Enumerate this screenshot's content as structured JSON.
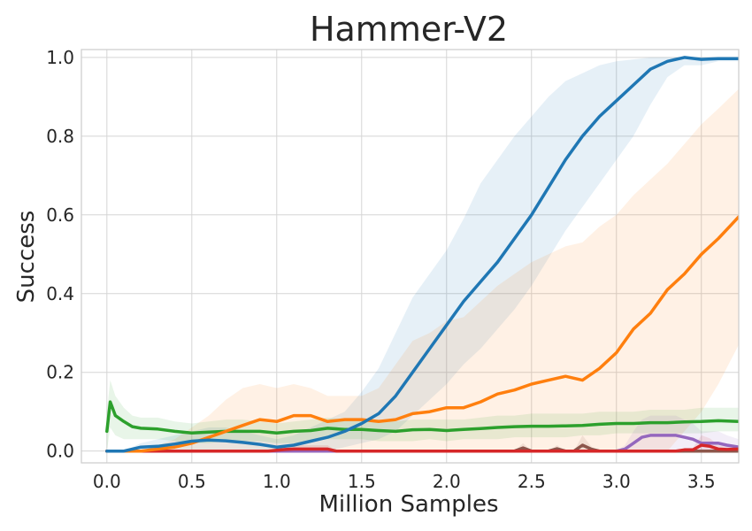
{
  "chart_data": {
    "type": "line",
    "title": "Hammer-V2",
    "xlabel": "Million Samples",
    "ylabel": "Success",
    "xlim": [
      -0.15,
      3.72
    ],
    "ylim": [
      -0.03,
      1.02
    ],
    "x_ticks": [
      0.0,
      0.5,
      1.0,
      1.5,
      2.0,
      2.5,
      3.0,
      3.5
    ],
    "x_tick_labels": [
      "0.0",
      "0.5",
      "1.0",
      "1.5",
      "2.0",
      "2.5",
      "3.0",
      "3.5"
    ],
    "y_ticks": [
      0.0,
      0.2,
      0.4,
      0.6,
      0.8,
      1.0
    ],
    "y_tick_labels": [
      "0.0",
      "0.2",
      "0.4",
      "0.6",
      "0.8",
      "1.0"
    ],
    "grid": true,
    "legend": "none",
    "series": [
      {
        "color": "#1f77b4",
        "x": [
          0.0,
          0.1,
          0.2,
          0.3,
          0.4,
          0.5,
          0.6,
          0.7,
          0.8,
          0.9,
          1.0,
          1.1,
          1.2,
          1.3,
          1.4,
          1.5,
          1.6,
          1.7,
          1.8,
          1.9,
          2.0,
          2.1,
          2.2,
          2.3,
          2.4,
          2.5,
          2.6,
          2.7,
          2.8,
          2.9,
          3.0,
          3.1,
          3.2,
          3.3,
          3.4,
          3.5,
          3.6,
          3.72
        ],
        "y": [
          0.0,
          0.0,
          0.01,
          0.012,
          0.018,
          0.025,
          0.028,
          0.026,
          0.022,
          0.017,
          0.01,
          0.015,
          0.025,
          0.035,
          0.05,
          0.07,
          0.095,
          0.14,
          0.2,
          0.26,
          0.32,
          0.38,
          0.43,
          0.48,
          0.54,
          0.6,
          0.67,
          0.74,
          0.8,
          0.85,
          0.89,
          0.93,
          0.97,
          0.99,
          1.0,
          0.995,
          0.997,
          0.997
        ],
        "lower": [
          0.0,
          0.0,
          0.0,
          0.0,
          0.0,
          0.0,
          0.0,
          0.0,
          0.0,
          0.0,
          0.0,
          0.0,
          0.0,
          0.0,
          0.01,
          0.02,
          0.03,
          0.05,
          0.09,
          0.13,
          0.17,
          0.22,
          0.26,
          0.31,
          0.36,
          0.42,
          0.49,
          0.56,
          0.62,
          0.68,
          0.74,
          0.8,
          0.88,
          0.95,
          0.98,
          0.98,
          0.99,
          0.99
        ],
        "upper": [
          0.0,
          0.0,
          0.02,
          0.03,
          0.04,
          0.05,
          0.06,
          0.06,
          0.05,
          0.04,
          0.03,
          0.04,
          0.06,
          0.08,
          0.1,
          0.15,
          0.21,
          0.3,
          0.39,
          0.45,
          0.51,
          0.59,
          0.68,
          0.74,
          0.8,
          0.85,
          0.9,
          0.94,
          0.96,
          0.98,
          0.99,
          0.995,
          1.0,
          1.0,
          1.0,
          1.0,
          1.0,
          1.0
        ]
      },
      {
        "color": "#ff7f0e",
        "x": [
          0.0,
          0.1,
          0.2,
          0.3,
          0.4,
          0.5,
          0.6,
          0.7,
          0.8,
          0.9,
          1.0,
          1.1,
          1.2,
          1.3,
          1.4,
          1.5,
          1.6,
          1.7,
          1.8,
          1.9,
          2.0,
          2.1,
          2.2,
          2.3,
          2.4,
          2.5,
          2.6,
          2.7,
          2.8,
          2.9,
          3.0,
          3.1,
          3.2,
          3.3,
          3.4,
          3.5,
          3.6,
          3.72
        ],
        "y": [
          0.0,
          0.0,
          0.0,
          0.005,
          0.01,
          0.02,
          0.035,
          0.05,
          0.065,
          0.08,
          0.075,
          0.09,
          0.09,
          0.075,
          0.08,
          0.08,
          0.075,
          0.08,
          0.095,
          0.1,
          0.11,
          0.11,
          0.125,
          0.145,
          0.155,
          0.17,
          0.18,
          0.19,
          0.18,
          0.21,
          0.25,
          0.31,
          0.35,
          0.41,
          0.45,
          0.5,
          0.54,
          0.595
        ],
        "lower": [
          0.0,
          0.0,
          0.0,
          0.0,
          0.0,
          0.0,
          0.0,
          0.0,
          0.0,
          0.0,
          0.0,
          0.0,
          0.0,
          0.0,
          0.0,
          0.0,
          0.0,
          0.0,
          0.0,
          0.0,
          0.0,
          0.0,
          0.0,
          0.0,
          0.0,
          0.0,
          0.0,
          0.0,
          0.0,
          0.0,
          0.0,
          0.0,
          0.0,
          0.0,
          0.05,
          0.1,
          0.17,
          0.27
        ],
        "upper": [
          0.0,
          0.0,
          0.0,
          0.015,
          0.03,
          0.06,
          0.09,
          0.13,
          0.16,
          0.17,
          0.16,
          0.17,
          0.16,
          0.14,
          0.14,
          0.14,
          0.16,
          0.22,
          0.28,
          0.3,
          0.33,
          0.34,
          0.38,
          0.42,
          0.45,
          0.48,
          0.5,
          0.52,
          0.53,
          0.57,
          0.6,
          0.65,
          0.69,
          0.73,
          0.78,
          0.83,
          0.87,
          0.92
        ]
      },
      {
        "color": "#2ca02c",
        "x": [
          0.0,
          0.02,
          0.05,
          0.1,
          0.15,
          0.2,
          0.3,
          0.4,
          0.5,
          0.6,
          0.7,
          0.8,
          0.9,
          1.0,
          1.1,
          1.2,
          1.3,
          1.4,
          1.5,
          1.6,
          1.7,
          1.8,
          1.9,
          2.0,
          2.1,
          2.2,
          2.3,
          2.4,
          2.5,
          2.6,
          2.7,
          2.8,
          2.9,
          3.0,
          3.1,
          3.2,
          3.3,
          3.4,
          3.5,
          3.6,
          3.72
        ],
        "y": [
          0.05,
          0.125,
          0.09,
          0.075,
          0.062,
          0.058,
          0.056,
          0.05,
          0.046,
          0.048,
          0.05,
          0.05,
          0.05,
          0.046,
          0.05,
          0.052,
          0.058,
          0.055,
          0.055,
          0.052,
          0.05,
          0.054,
          0.055,
          0.052,
          0.055,
          0.057,
          0.06,
          0.062,
          0.063,
          0.063,
          0.064,
          0.065,
          0.068,
          0.07,
          0.07,
          0.072,
          0.072,
          0.074,
          0.075,
          0.077,
          0.075
        ],
        "lower": [
          0.0,
          0.06,
          0.04,
          0.03,
          0.03,
          0.03,
          0.03,
          0.025,
          0.02,
          0.02,
          0.025,
          0.025,
          0.025,
          0.02,
          0.02,
          0.025,
          0.03,
          0.03,
          0.03,
          0.025,
          0.025,
          0.025,
          0.03,
          0.025,
          0.03,
          0.03,
          0.03,
          0.035,
          0.035,
          0.035,
          0.035,
          0.04,
          0.04,
          0.045,
          0.045,
          0.045,
          0.045,
          0.045,
          0.045,
          0.05,
          0.05
        ],
        "upper": [
          0.1,
          0.18,
          0.14,
          0.11,
          0.09,
          0.085,
          0.085,
          0.075,
          0.07,
          0.075,
          0.08,
          0.08,
          0.075,
          0.07,
          0.075,
          0.08,
          0.085,
          0.08,
          0.08,
          0.08,
          0.075,
          0.08,
          0.08,
          0.08,
          0.08,
          0.085,
          0.09,
          0.09,
          0.095,
          0.095,
          0.095,
          0.095,
          0.1,
          0.1,
          0.1,
          0.105,
          0.105,
          0.105,
          0.11,
          0.11,
          0.11
        ]
      },
      {
        "color": "#d62728",
        "x": [
          0.0,
          0.9,
          0.95,
          1.0,
          1.05,
          1.1,
          1.2,
          1.3,
          1.35,
          3.35,
          3.4,
          3.45,
          3.5,
          3.55,
          3.6,
          3.65,
          3.72
        ],
        "y": [
          0.0,
          0.0,
          0.0,
          0.002,
          0.004,
          0.005,
          0.005,
          0.005,
          0.0,
          0.0,
          0.003,
          0.003,
          0.015,
          0.012,
          0.005,
          0.004,
          0.005
        ],
        "lower": [
          0.0,
          0.0,
          0.0,
          0.0,
          0.0,
          0.0,
          0.0,
          0.0,
          0.0,
          0.0,
          0.0,
          0.0,
          0.0,
          0.0,
          0.0,
          0.0,
          0.0
        ],
        "upper": [
          0.0,
          0.0,
          0.0,
          0.006,
          0.012,
          0.015,
          0.015,
          0.015,
          0.0,
          0.0,
          0.008,
          0.008,
          0.04,
          0.032,
          0.015,
          0.012,
          0.015
        ]
      },
      {
        "color": "#9467bd",
        "x": [
          0.0,
          2.9,
          3.0,
          3.05,
          3.1,
          3.15,
          3.2,
          3.25,
          3.3,
          3.35,
          3.4,
          3.45,
          3.5,
          3.55,
          3.6,
          3.65,
          3.72
        ],
        "y": [
          0.0,
          0.0,
          0.0,
          0.005,
          0.02,
          0.035,
          0.04,
          0.04,
          0.04,
          0.04,
          0.035,
          0.03,
          0.02,
          0.02,
          0.02,
          0.015,
          0.01
        ],
        "lower": [
          0.0,
          0.0,
          0.0,
          0.0,
          0.0,
          0.0,
          0.0,
          0.0,
          0.0,
          0.0,
          0.0,
          0.0,
          0.0,
          0.0,
          0.0,
          0.0,
          0.0
        ],
        "upper": [
          0.0,
          0.0,
          0.0,
          0.015,
          0.05,
          0.08,
          0.09,
          0.09,
          0.09,
          0.09,
          0.08,
          0.07,
          0.05,
          0.05,
          0.05,
          0.04,
          0.03
        ]
      },
      {
        "color": "#8c564b",
        "x": [
          0.0,
          2.4,
          2.45,
          2.5,
          2.6,
          2.65,
          2.7,
          2.75,
          2.8,
          2.85,
          2.9,
          3.72
        ],
        "y": [
          0.0,
          0.0,
          0.008,
          0.0,
          0.0,
          0.006,
          0.0,
          0.0,
          0.015,
          0.005,
          0.0,
          0.0
        ],
        "lower": [
          0.0,
          0.0,
          0.0,
          0.0,
          0.0,
          0.0,
          0.0,
          0.0,
          0.0,
          0.0,
          0.0,
          0.0
        ],
        "upper": [
          0.0,
          0.0,
          0.02,
          0.0,
          0.0,
          0.015,
          0.0,
          0.0,
          0.04,
          0.012,
          0.0,
          0.0
        ]
      }
    ]
  }
}
